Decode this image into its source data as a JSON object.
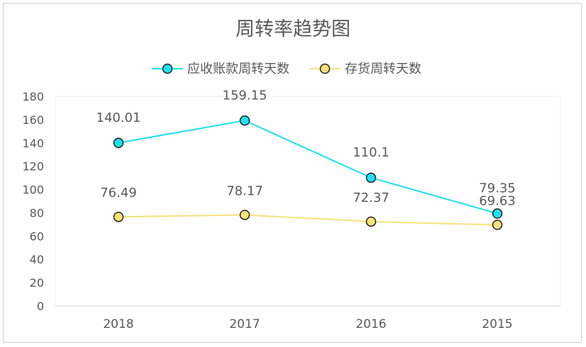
{
  "chart_data": {
    "type": "line",
    "title": "周转率趋势图",
    "categories": [
      "2018",
      "2017",
      "2016",
      "2015"
    ],
    "ylim": [
      0,
      180
    ],
    "yticks": [
      0,
      20,
      40,
      60,
      80,
      100,
      120,
      140,
      160,
      180
    ],
    "grid": false,
    "legend_position": "top",
    "series": [
      {
        "name": "应收账款周转天数",
        "values": [
          140.01,
          159.15,
          110.1,
          79.35
        ],
        "labels": [
          "140.01",
          "159.15",
          "110.1",
          "79.35"
        ],
        "color": "#1fe0ee"
      },
      {
        "name": "存货周转天数",
        "values": [
          76.49,
          78.17,
          72.37,
          69.63
        ],
        "labels": [
          "76.49",
          "78.17",
          "72.37",
          "69.63"
        ],
        "color": "#f7e27a"
      }
    ]
  }
}
